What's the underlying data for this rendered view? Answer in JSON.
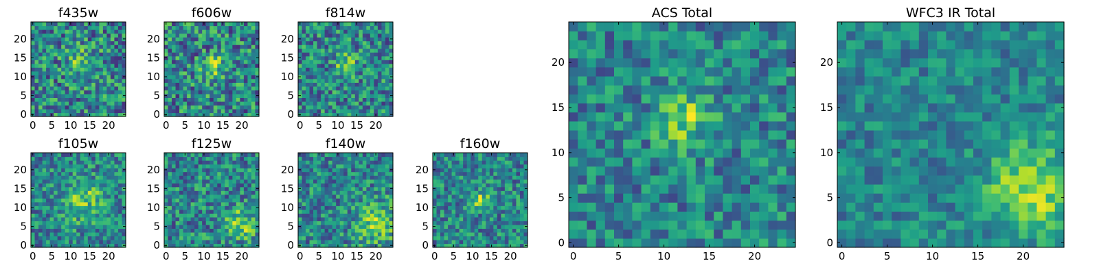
{
  "chart_data": [
    {
      "id": "f435w",
      "type": "heatmap",
      "title": "f435w",
      "shape": [
        25,
        25
      ],
      "xlim": [
        0,
        24
      ],
      "ylim": [
        0,
        24
      ],
      "xticks": [
        0,
        5,
        10,
        15,
        20
      ],
      "yticks": [
        0,
        5,
        10,
        15,
        20
      ],
      "colormap": "viridis",
      "origin": "lower",
      "value_range": [
        0,
        1
      ],
      "feature": {
        "center": [
          13,
          14
        ],
        "sigma": 2.8,
        "amplitude": 0.28
      },
      "noise": 0.32
    },
    {
      "id": "f606w",
      "type": "heatmap",
      "title": "f606w",
      "shape": [
        25,
        25
      ],
      "xlim": [
        0,
        24
      ],
      "ylim": [
        0,
        24
      ],
      "xticks": [
        0,
        5,
        10,
        15,
        20
      ],
      "yticks": [
        0,
        5,
        10,
        15,
        20
      ],
      "colormap": "viridis",
      "origin": "lower",
      "value_range": [
        0,
        1
      ],
      "feature": {
        "center": [
          13,
          13
        ],
        "sigma": 2.2,
        "amplitude": 0.3
      },
      "noise": 0.33
    },
    {
      "id": "f814w",
      "type": "heatmap",
      "title": "f814w",
      "shape": [
        25,
        25
      ],
      "xlim": [
        0,
        24
      ],
      "ylim": [
        0,
        24
      ],
      "xticks": [
        0,
        5,
        10,
        15,
        20
      ],
      "yticks": [
        0,
        5,
        10,
        15,
        20
      ],
      "colormap": "viridis",
      "origin": "lower",
      "value_range": [
        0,
        1
      ],
      "feature": {
        "center": [
          12,
          13
        ],
        "sigma": 2.2,
        "amplitude": 0.32
      },
      "noise": 0.3
    },
    {
      "id": "f105w",
      "type": "heatmap",
      "title": "f105w",
      "shape": [
        25,
        25
      ],
      "xlim": [
        0,
        24
      ],
      "ylim": [
        0,
        24
      ],
      "xticks": [
        0,
        5,
        10,
        15,
        20
      ],
      "yticks": [
        0,
        5,
        10,
        15,
        20
      ],
      "colormap": "viridis",
      "origin": "lower",
      "value_range": [
        0,
        1
      ],
      "feature": {
        "center": [
          13,
          12
        ],
        "sigma": 4,
        "amplitude": 0.3
      },
      "noise": 0.26
    },
    {
      "id": "f125w",
      "type": "heatmap",
      "title": "f125w",
      "shape": [
        25,
        25
      ],
      "xlim": [
        0,
        24
      ],
      "ylim": [
        0,
        24
      ],
      "xticks": [
        0,
        5,
        10,
        15,
        20
      ],
      "yticks": [
        0,
        5,
        10,
        15,
        20
      ],
      "colormap": "viridis",
      "origin": "lower",
      "value_range": [
        0,
        1
      ],
      "feature": {
        "center": [
          20,
          6
        ],
        "sigma": 3,
        "amplitude": 0.32
      },
      "noise": 0.28
    },
    {
      "id": "f140w",
      "type": "heatmap",
      "title": "f140w",
      "shape": [
        25,
        25
      ],
      "xlim": [
        0,
        24
      ],
      "ylim": [
        0,
        24
      ],
      "xticks": [
        0,
        5,
        10,
        15,
        20
      ],
      "yticks": [
        0,
        5,
        10,
        15,
        20
      ],
      "colormap": "viridis",
      "origin": "lower",
      "value_range": [
        0,
        1
      ],
      "feature": {
        "center": [
          20,
          6
        ],
        "sigma": 4,
        "amplitude": 0.3
      },
      "noise": 0.27
    },
    {
      "id": "f160w",
      "type": "heatmap",
      "title": "f160w",
      "shape": [
        25,
        25
      ],
      "xlim": [
        0,
        24
      ],
      "ylim": [
        0,
        24
      ],
      "xticks": [
        0,
        5,
        10,
        15,
        20
      ],
      "yticks": [
        0,
        5,
        10,
        15,
        20
      ],
      "colormap": "viridis",
      "origin": "lower",
      "value_range": [
        0,
        1
      ],
      "feature": {
        "center": [
          12,
          12
        ],
        "sigma": 1.6,
        "amplitude": 0.42
      },
      "noise": 0.26
    },
    {
      "id": "acs-total",
      "type": "heatmap",
      "title": "ACS Total",
      "shape": [
        25,
        25
      ],
      "xlim": [
        0,
        24
      ],
      "ylim": [
        0,
        24
      ],
      "xticks": [
        0,
        5,
        10,
        15,
        20
      ],
      "yticks": [
        0,
        5,
        10,
        15,
        20
      ],
      "colormap": "viridis",
      "origin": "lower",
      "value_range": [
        0,
        1
      ],
      "feature": {
        "center": [
          12,
          14
        ],
        "sigma": 2,
        "amplitude": 0.38
      },
      "noise": 0.24
    },
    {
      "id": "wfc3-ir-total",
      "type": "heatmap",
      "title": "WFC3 IR Total",
      "shape": [
        25,
        25
      ],
      "xlim": [
        0,
        24
      ],
      "ylim": [
        0,
        24
      ],
      "xticks": [
        0,
        5,
        10,
        15,
        20
      ],
      "yticks": [
        0,
        5,
        10,
        15,
        20
      ],
      "colormap": "viridis",
      "origin": "lower",
      "value_range": [
        0,
        1
      ],
      "feature": {
        "center": [
          21,
          6
        ],
        "sigma": 3.5,
        "amplitude": 0.42
      },
      "noise": 0.18
    }
  ]
}
